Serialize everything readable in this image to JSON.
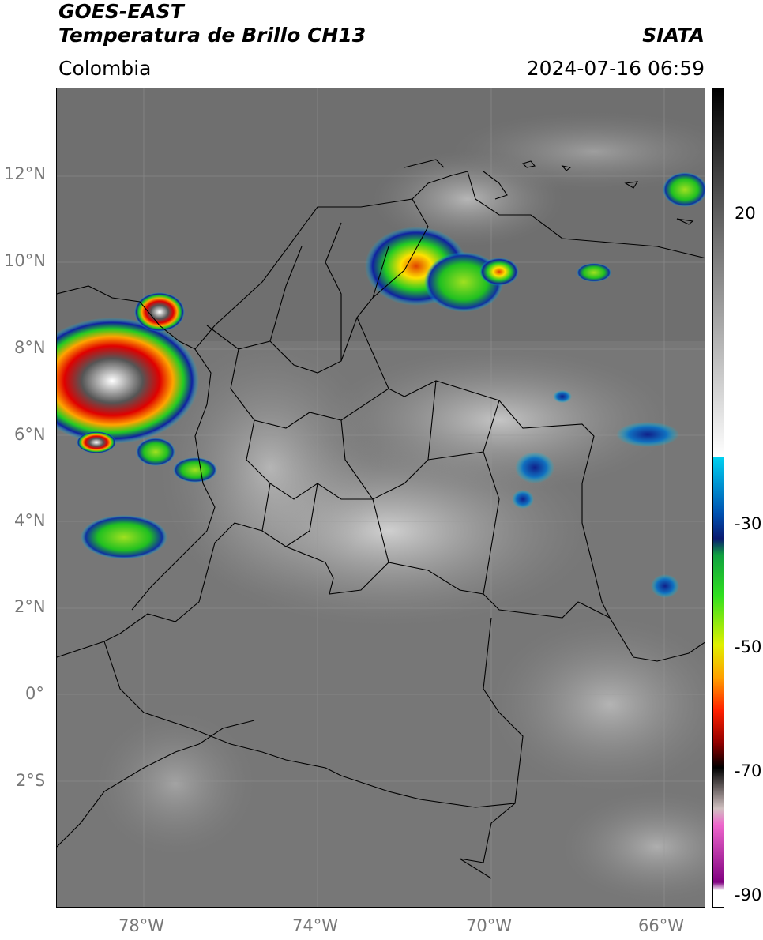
{
  "header": {
    "satellite": "GOES-EAST",
    "product": "Temperatura de Brillo CH13",
    "region": "Colombia",
    "organization": "SIATA",
    "timestamp": "2024-07-16 06:59"
  },
  "map": {
    "lat_ticks": [
      "12°N",
      "10°N",
      "8°N",
      "6°N",
      "4°N",
      "2°N",
      "0°",
      "2°S"
    ],
    "lon_ticks": [
      "78°W",
      "74°W",
      "70°W",
      "66°W"
    ]
  },
  "colorbar": {
    "labels": [
      "20",
      "-30",
      "-50",
      "-70",
      "-90"
    ]
  }
}
